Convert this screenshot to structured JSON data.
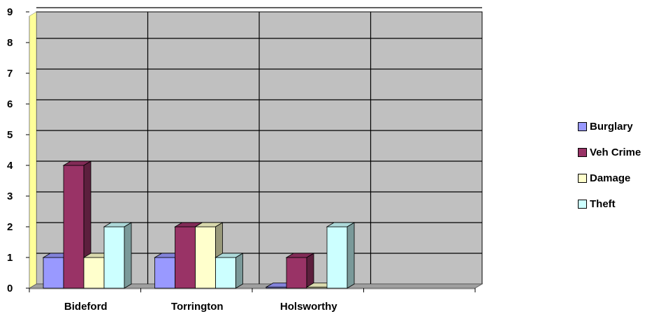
{
  "chart_data": {
    "type": "bar",
    "categories": [
      "Bideford",
      "Torrington",
      "Holsworthy",
      ""
    ],
    "series": [
      {
        "name": "Burglary",
        "values": [
          1,
          1,
          0,
          null
        ],
        "color": "#9999ff"
      },
      {
        "name": "Veh Crime",
        "values": [
          4,
          2,
          1,
          null
        ],
        "color": "#993366"
      },
      {
        "name": "Damage",
        "values": [
          1,
          2,
          0,
          null
        ],
        "color": "#ffffcc"
      },
      {
        "name": "Theft",
        "values": [
          2,
          1,
          2,
          null
        ],
        "color": "#ccffff"
      }
    ],
    "ylim": [
      0,
      9
    ],
    "yticks": [
      "0",
      "1",
      "2",
      "3",
      "4",
      "5",
      "6",
      "7",
      "8",
      "9"
    ],
    "grid": true,
    "legend": "right",
    "plot_background": "#c0c0c0",
    "title": "",
    "xlabel": "",
    "ylabel": ""
  }
}
